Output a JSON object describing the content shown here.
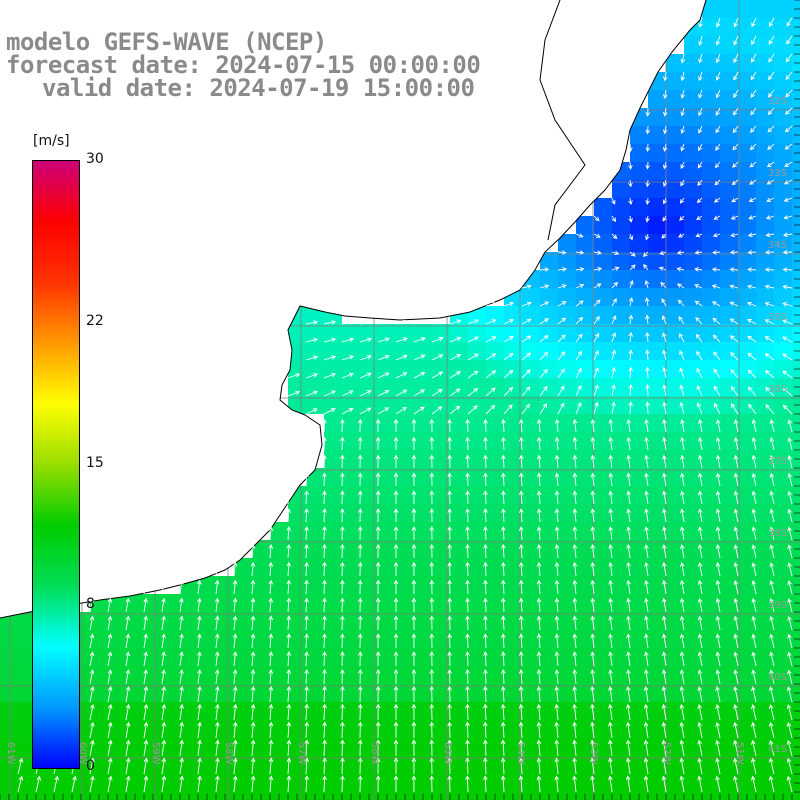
{
  "title": {
    "line1": "modelo GEFS-WAVE (NCEP)",
    "line2": "forecast date: 2024-07-15 00:00:00",
    "line3": "valid date: 2024-07-19 15:00:00"
  },
  "colorbar": {
    "unit": "[m/s]",
    "ticks": [
      "30",
      "22",
      "15",
      "8",
      "0"
    ],
    "tick_values": [
      30,
      22,
      15,
      8,
      0
    ],
    "min": 0,
    "max": 30,
    "colors": [
      "#0000ff",
      "#0099ff",
      "#00ffff",
      "#00dd55",
      "#00cc00",
      "#99dd00",
      "#ffff00",
      "#ff9900",
      "#ff3300",
      "#ff0000",
      "#cc0077"
    ]
  },
  "map": {
    "lon_labels": [
      "61W",
      "60W",
      "59W",
      "58W",
      "57W",
      "56W",
      "55W",
      "54W",
      "53W",
      "52W",
      "51W"
    ],
    "lat_labels": [
      "32S",
      "33S",
      "34S",
      "35S",
      "36S",
      "37S",
      "38S",
      "39S",
      "40S",
      "41S"
    ],
    "land_color": "#ffffff",
    "coast_color": "#000000",
    "grid_color": "#808080",
    "vector_color": "#ffffff"
  }
}
